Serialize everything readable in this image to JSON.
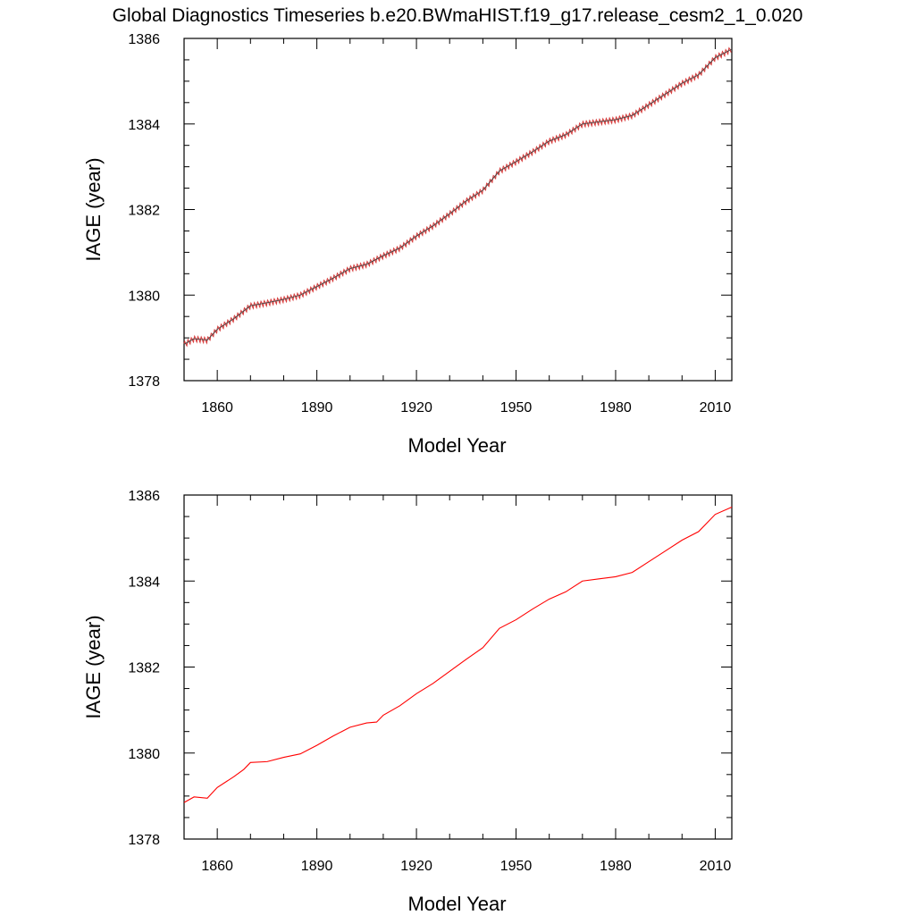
{
  "title": "Global Diagnostics Timeseries b.e20.BWmaHIST.f19_g17.release_cesm2_1_0.020",
  "colors": {
    "monthly_line": "#444444",
    "seasonal_wiggle": "#d02020",
    "annual_line": "#ff0000",
    "axes": "#000000"
  },
  "chart_data": [
    {
      "type": "line",
      "xlabel": "Model Year",
      "ylabel": "IAGE (year)",
      "xlim": [
        1850,
        2015
      ],
      "ylim": [
        1378,
        1386
      ],
      "xticks": [
        1860,
        1890,
        1920,
        1950,
        1980,
        2010
      ],
      "yticks": [
        1378,
        1380,
        1382,
        1384,
        1386
      ],
      "grid": false,
      "series": [
        {
          "resolution": "monthly",
          "x": [
            1850,
            1853,
            1857,
            1860,
            1865,
            1870,
            1875,
            1880,
            1885,
            1890,
            1895,
            1900,
            1905,
            1910,
            1915,
            1920,
            1925,
            1930,
            1935,
            1940,
            1945,
            1950,
            1955,
            1960,
            1965,
            1970,
            1975,
            1980,
            1985,
            1990,
            1995,
            2000,
            2005,
            2010,
            2015
          ],
          "values": [
            1378.85,
            1378.98,
            1378.95,
            1379.2,
            1379.45,
            1379.75,
            1379.82,
            1379.9,
            1380.0,
            1380.2,
            1380.4,
            1380.62,
            1380.72,
            1380.92,
            1381.1,
            1381.38,
            1381.62,
            1381.9,
            1382.2,
            1382.45,
            1382.9,
            1383.12,
            1383.35,
            1383.6,
            1383.75,
            1384.0,
            1384.05,
            1384.1,
            1384.2,
            1384.45,
            1384.7,
            1384.95,
            1385.15,
            1385.55,
            1385.75
          ]
        }
      ]
    },
    {
      "type": "line",
      "xlabel": "Model Year",
      "ylabel": "IAGE (year)",
      "xlim": [
        1850,
        2015
      ],
      "ylim": [
        1378,
        1386
      ],
      "xticks": [
        1860,
        1890,
        1920,
        1950,
        1980,
        2010
      ],
      "yticks": [
        1378,
        1380,
        1382,
        1384,
        1386
      ],
      "grid": false,
      "series": [
        {
          "resolution": "annual",
          "x": [
            1850,
            1853,
            1857,
            1860,
            1865,
            1868,
            1870,
            1875,
            1880,
            1885,
            1890,
            1895,
            1900,
            1905,
            1908,
            1910,
            1915,
            1920,
            1925,
            1930,
            1935,
            1940,
            1945,
            1950,
            1955,
            1960,
            1965,
            1970,
            1975,
            1980,
            1985,
            1990,
            1995,
            2000,
            2005,
            2010,
            2015
          ],
          "values": [
            1378.85,
            1378.98,
            1378.95,
            1379.2,
            1379.45,
            1379.62,
            1379.78,
            1379.8,
            1379.9,
            1379.98,
            1380.18,
            1380.4,
            1380.6,
            1380.7,
            1380.72,
            1380.88,
            1381.1,
            1381.38,
            1381.62,
            1381.9,
            1382.18,
            1382.45,
            1382.9,
            1383.1,
            1383.35,
            1383.58,
            1383.75,
            1384.0,
            1384.05,
            1384.1,
            1384.2,
            1384.45,
            1384.7,
            1384.95,
            1385.15,
            1385.55,
            1385.72
          ]
        }
      ]
    }
  ]
}
